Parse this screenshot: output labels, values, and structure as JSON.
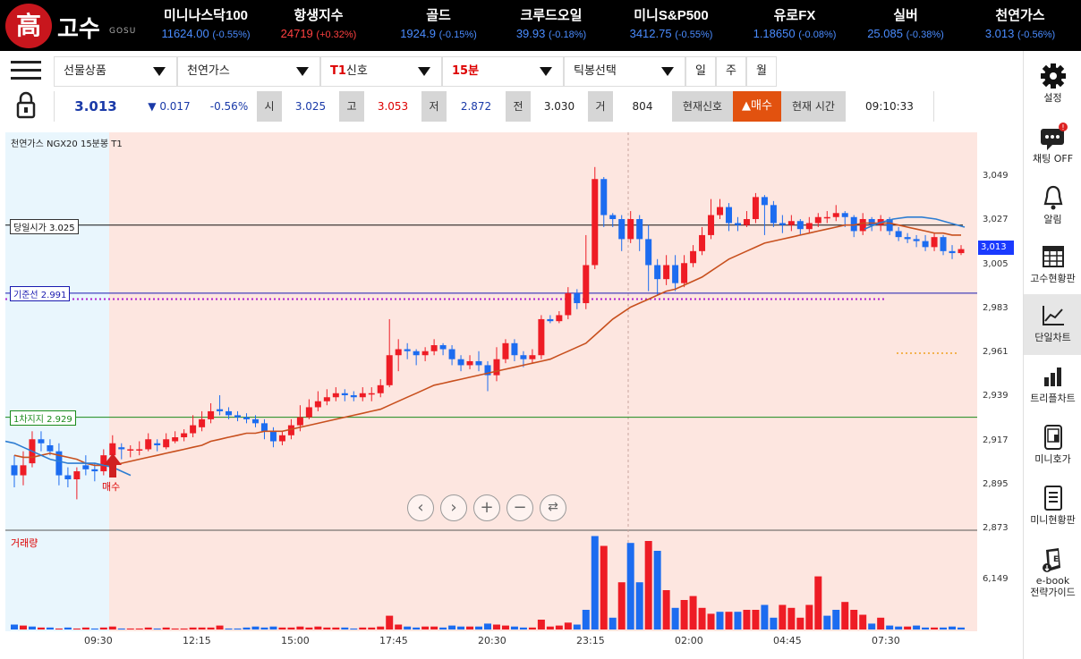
{
  "logo": {
    "hanja": "高",
    "name": "고수",
    "sub": "GOSU"
  },
  "tickers": [
    {
      "name": "미니나스닥100",
      "value": "11624.00",
      "change": "(-0.55%)",
      "dir": "down"
    },
    {
      "name": "항생지수",
      "value": "24719",
      "change": "(+0.32%)",
      "dir": "up"
    },
    {
      "name": "골드",
      "value": "1924.9",
      "change": "(-0.15%)",
      "dir": "down"
    },
    {
      "name": "크루드오일",
      "value": "39.93",
      "change": "(-0.18%)",
      "dir": "down"
    },
    {
      "name": "미니S&P500",
      "value": "3412.75",
      "change": "(-0.55%)",
      "dir": "down"
    },
    {
      "name": "유로FX",
      "value": "1.18650",
      "change": "(-0.08%)",
      "dir": "down"
    },
    {
      "name": "실버",
      "value": "25.085",
      "change": "(-0.38%)",
      "dir": "down"
    },
    {
      "name": "천연가스",
      "value": "3.013",
      "change": "(-0.56%)",
      "dir": "down"
    }
  ],
  "selectors": {
    "product": "선물상품",
    "item": "천연가스",
    "signal_prefix": "T1",
    "signal": "신호",
    "interval": "15분",
    "tick": "틱봉선택",
    "day": "일",
    "week": "주",
    "month": "월"
  },
  "quote": {
    "price": "3.013",
    "change": "▼ 0.017",
    "pct": "-0.56%",
    "open_label": "시",
    "open": "3.025",
    "high_label": "고",
    "high": "3.053",
    "low_label": "저",
    "low": "2.872",
    "prev_label": "전",
    "prev": "3.030",
    "vol_label": "거",
    "vol": "804",
    "signal_label": "현재신호",
    "signal_value": "▲매수",
    "time_label": "현재 시간",
    "time": "09:10:33"
  },
  "sidebar": [
    {
      "label": "설정",
      "icon": "gear-icon"
    },
    {
      "label": "채팅 OFF",
      "icon": "chat-icon"
    },
    {
      "label": "알림",
      "icon": "bell-icon"
    },
    {
      "label": "고수현황판",
      "icon": "calendar-grid-icon"
    },
    {
      "label": "단일차트",
      "icon": "line-chart-icon"
    },
    {
      "label": "트리플차트",
      "icon": "bar-chart-icon"
    },
    {
      "label": "미니호가",
      "icon": "phone-book-icon"
    },
    {
      "label": "미니현황판",
      "icon": "list-board-icon"
    },
    {
      "label": "e-book\n전략가이드",
      "icon": "ebook-icon"
    }
  ],
  "chart": {
    "title": "천연가스  NGX20  15분봉  T1",
    "open_line": "당일시가 3.025",
    "base_line": "기준선 2.991",
    "support_line": "1차지지 2.929",
    "buy_label": "매수",
    "volume_label": "거래량",
    "current_price_tag": "3,013",
    "y_ticks": [
      "3,049",
      "3,027",
      "3,005",
      "2,983",
      "2,961",
      "2,939",
      "2,917",
      "2,895",
      "2,873"
    ],
    "vol_tick": "6,149",
    "x_ticks": [
      "09:30",
      "12:15",
      "15:00",
      "17:45",
      "20:30",
      "23:15",
      "02:00",
      "04:45",
      "07:30"
    ]
  },
  "chart_data": {
    "type": "candlestick",
    "y_range": [
      2.873,
      3.06
    ],
    "colors": {
      "up": "#ee1c25",
      "down": "#1c6cf0",
      "ma": "#c8501e",
      "ma2": "#2d7dd2"
    },
    "candles": [
      [
        2.905,
        2.9,
        2.91,
        2.894
      ],
      [
        2.9,
        2.905,
        2.912,
        2.895
      ],
      [
        2.906,
        2.918,
        2.922,
        2.904
      ],
      [
        2.918,
        2.916,
        2.922,
        2.912
      ],
      [
        2.915,
        2.912,
        2.918,
        2.91
      ],
      [
        2.912,
        2.9,
        2.916,
        2.895
      ],
      [
        2.9,
        2.898,
        2.904,
        2.894
      ],
      [
        2.898,
        2.902,
        2.904,
        2.888
      ],
      [
        2.905,
        2.903,
        2.91,
        2.9
      ],
      [
        2.903,
        2.902,
        2.906,
        2.897
      ],
      [
        2.902,
        2.91,
        2.913,
        2.9
      ],
      [
        2.91,
        2.916,
        2.92,
        2.908
      ],
      [
        2.914,
        2.913,
        2.916,
        2.908
      ],
      [
        2.913,
        2.913,
        2.915,
        2.909
      ],
      [
        2.913,
        2.913,
        2.917,
        2.91
      ],
      [
        2.913,
        2.918,
        2.921,
        2.912
      ],
      [
        2.916,
        2.915,
        2.918,
        2.912
      ],
      [
        2.914,
        2.918,
        2.921,
        2.913
      ],
      [
        2.917,
        2.919,
        2.922,
        2.916
      ],
      [
        2.919,
        2.921,
        2.923,
        2.917
      ],
      [
        2.921,
        2.925,
        2.93,
        2.919
      ],
      [
        2.924,
        2.928,
        2.932,
        2.922
      ],
      [
        2.928,
        2.932,
        2.936,
        2.926
      ],
      [
        2.933,
        2.932,
        2.94,
        2.93
      ],
      [
        2.932,
        2.93,
        2.934,
        2.928
      ],
      [
        2.93,
        2.929,
        2.932,
        2.927
      ],
      [
        2.929,
        2.928,
        2.931,
        2.926
      ],
      [
        2.928,
        2.926,
        2.93,
        2.924
      ],
      [
        2.926,
        2.922,
        2.928,
        2.918
      ],
      [
        2.922,
        2.917,
        2.924,
        2.914
      ],
      [
        2.917,
        2.92,
        2.922,
        2.915
      ],
      [
        2.92,
        2.925,
        2.928,
        2.918
      ],
      [
        2.925,
        2.929,
        2.935,
        2.922
      ],
      [
        2.929,
        2.934,
        2.938,
        2.928
      ],
      [
        2.934,
        2.937,
        2.942,
        2.932
      ],
      [
        2.937,
        2.939,
        2.943,
        2.935
      ],
      [
        2.939,
        2.941,
        2.944,
        2.937
      ],
      [
        2.941,
        2.94,
        2.943,
        2.937
      ],
      [
        2.94,
        2.939,
        2.942,
        2.937
      ],
      [
        2.939,
        2.941,
        2.944,
        2.937
      ],
      [
        2.941,
        2.941,
        2.944,
        2.937
      ],
      [
        2.941,
        2.945,
        2.948,
        2.939
      ],
      [
        2.945,
        2.96,
        2.978,
        2.944
      ],
      [
        2.96,
        2.963,
        2.968,
        2.952
      ],
      [
        2.963,
        2.962,
        2.966,
        2.958
      ],
      [
        2.962,
        2.96,
        2.963,
        2.955
      ],
      [
        2.96,
        2.962,
        2.964,
        2.957
      ],
      [
        2.962,
        2.965,
        2.968,
        2.96
      ],
      [
        2.965,
        2.963,
        2.966,
        2.96
      ],
      [
        2.963,
        2.958,
        2.965,
        2.955
      ],
      [
        2.958,
        2.955,
        2.96,
        2.952
      ],
      [
        2.955,
        2.957,
        2.96,
        2.953
      ],
      [
        2.957,
        2.955,
        2.962,
        2.952
      ],
      [
        2.955,
        2.95,
        2.957,
        2.942
      ],
      [
        2.95,
        2.958,
        2.964,
        2.947
      ],
      [
        2.958,
        2.966,
        2.968,
        2.956
      ],
      [
        2.966,
        2.96,
        2.968,
        2.957
      ],
      [
        2.96,
        2.958,
        2.962,
        2.954
      ],
      [
        2.958,
        2.96,
        2.963,
        2.956
      ],
      [
        2.96,
        2.978,
        2.98,
        2.958
      ],
      [
        2.978,
        2.977,
        2.98,
        2.976
      ],
      [
        2.977,
        2.98,
        2.982,
        2.976
      ],
      [
        2.98,
        2.991,
        2.994,
        2.978
      ],
      [
        2.991,
        2.986,
        2.993,
        2.983
      ],
      [
        2.986,
        3.005,
        3.02,
        2.983
      ],
      [
        3.005,
        3.048,
        3.054,
        3.003
      ],
      [
        3.048,
        3.03,
        3.049,
        3.024
      ],
      [
        3.03,
        3.028,
        3.031,
        3.024
      ],
      [
        3.028,
        3.018,
        3.03,
        3.012
      ],
      [
        3.018,
        3.028,
        3.032,
        3.016
      ],
      [
        3.028,
        3.018,
        3.03,
        3.012
      ],
      [
        3.018,
        3.005,
        3.025,
        2.992
      ],
      [
        3.005,
        2.998,
        3.008,
        2.99
      ],
      [
        2.998,
        3.005,
        3.01,
        2.995
      ],
      [
        3.005,
        2.996,
        3.01,
        2.992
      ],
      [
        2.996,
        3.006,
        3.01,
        2.994
      ],
      [
        3.006,
        3.012,
        3.015,
        3.004
      ],
      [
        3.012,
        3.02,
        3.024,
        3.01
      ],
      [
        3.02,
        3.03,
        3.038,
        3.018
      ],
      [
        3.03,
        3.034,
        3.038,
        3.028
      ],
      [
        3.034,
        3.026,
        3.036,
        3.022
      ],
      [
        3.026,
        3.025,
        3.029,
        3.022
      ],
      [
        3.025,
        3.028,
        3.032,
        3.024
      ],
      [
        3.028,
        3.039,
        3.041,
        3.026
      ],
      [
        3.039,
        3.035,
        3.04,
        3.02
      ],
      [
        3.035,
        3.026,
        3.037,
        3.024
      ],
      [
        3.026,
        3.025,
        3.03,
        3.021
      ],
      [
        3.025,
        3.027,
        3.03,
        3.022
      ],
      [
        3.027,
        3.023,
        3.028,
        3.02
      ],
      [
        3.023,
        3.026,
        3.029,
        3.021
      ],
      [
        3.026,
        3.029,
        3.031,
        3.024
      ],
      [
        3.029,
        3.029,
        3.032,
        3.026
      ],
      [
        3.029,
        3.031,
        3.035,
        3.027
      ],
      [
        3.031,
        3.029,
        3.032,
        3.024
      ],
      [
        3.029,
        3.022,
        3.03,
        3.019
      ],
      [
        3.022,
        3.028,
        3.031,
        3.02
      ],
      [
        3.028,
        3.025,
        3.029,
        3.022
      ],
      [
        3.025,
        3.028,
        3.03,
        3.022
      ],
      [
        3.028,
        3.022,
        3.029,
        3.02
      ],
      [
        3.022,
        3.019,
        3.024,
        3.017
      ],
      [
        3.019,
        3.018,
        3.021,
        3.016
      ],
      [
        3.018,
        3.017,
        3.02,
        3.014
      ],
      [
        3.017,
        3.014,
        3.02,
        3.012
      ],
      [
        3.014,
        3.019,
        3.021,
        3.012
      ],
      [
        3.019,
        3.012,
        3.02,
        3.01
      ],
      [
        3.012,
        3.011,
        3.015,
        3.008
      ],
      [
        3.011,
        3.013,
        3.015,
        3.01
      ]
    ],
    "ma": [
      2.91,
      2.909,
      2.909,
      2.91,
      2.911,
      2.91,
      2.909,
      2.908,
      2.906,
      2.905,
      2.905,
      2.905,
      2.906,
      2.907,
      2.908,
      2.909,
      2.91,
      2.911,
      2.912,
      2.913,
      2.914,
      2.915,
      2.917,
      2.918,
      2.919,
      2.92,
      2.921,
      2.921,
      2.922,
      2.922,
      2.922,
      2.923,
      2.924,
      2.925,
      2.926,
      2.927,
      2.928,
      2.929,
      2.93,
      2.931,
      2.932,
      2.933,
      2.935,
      2.937,
      2.939,
      2.941,
      2.943,
      2.945,
      2.946,
      2.947,
      2.948,
      2.949,
      2.95,
      2.951,
      2.952,
      2.953,
      2.954,
      2.955,
      2.956,
      2.957,
      2.958,
      2.96,
      2.962,
      2.964,
      2.966,
      2.97,
      2.974,
      2.978,
      2.981,
      2.984,
      2.986,
      2.988,
      2.99,
      2.992,
      2.993,
      2.995,
      2.997,
      2.999,
      3.002,
      3.005,
      3.008,
      3.01,
      3.012,
      3.014,
      3.016,
      3.017,
      3.018,
      3.019,
      3.02,
      3.021,
      3.022,
      3.023,
      3.024,
      3.025,
      3.025,
      3.026,
      3.026,
      3.026,
      3.026,
      3.025,
      3.024,
      3.023,
      3.022,
      3.021,
      3.021,
      3.02,
      3.02
    ],
    "volumes": [
      [
        0.05,
        "down"
      ],
      [
        0.04,
        "up"
      ],
      [
        0.03,
        "down"
      ],
      [
        0.02,
        "up"
      ],
      [
        0.02,
        "down"
      ],
      [
        0.01,
        "up"
      ],
      [
        0.02,
        "down"
      ],
      [
        0.01,
        "up"
      ],
      [
        0.02,
        "up"
      ],
      [
        0.01,
        "down"
      ],
      [
        0.02,
        "up"
      ],
      [
        0.03,
        "up"
      ],
      [
        0.01,
        "down"
      ],
      [
        0.01,
        "up"
      ],
      [
        0.01,
        "up"
      ],
      [
        0.02,
        "up"
      ],
      [
        0.01,
        "down"
      ],
      [
        0.02,
        "up"
      ],
      [
        0.01,
        "up"
      ],
      [
        0.01,
        "up"
      ],
      [
        0.02,
        "up"
      ],
      [
        0.02,
        "up"
      ],
      [
        0.02,
        "up"
      ],
      [
        0.04,
        "up"
      ],
      [
        0.01,
        "down"
      ],
      [
        0.01,
        "down"
      ],
      [
        0.02,
        "down"
      ],
      [
        0.03,
        "down"
      ],
      [
        0.02,
        "down"
      ],
      [
        0.03,
        "down"
      ],
      [
        0.02,
        "up"
      ],
      [
        0.02,
        "up"
      ],
      [
        0.03,
        "up"
      ],
      [
        0.02,
        "up"
      ],
      [
        0.03,
        "up"
      ],
      [
        0.02,
        "up"
      ],
      [
        0.02,
        "up"
      ],
      [
        0.02,
        "down"
      ],
      [
        0.01,
        "down"
      ],
      [
        0.02,
        "up"
      ],
      [
        0.02,
        "up"
      ],
      [
        0.03,
        "up"
      ],
      [
        0.14,
        "up"
      ],
      [
        0.05,
        "up"
      ],
      [
        0.03,
        "down"
      ],
      [
        0.02,
        "down"
      ],
      [
        0.03,
        "up"
      ],
      [
        0.03,
        "up"
      ],
      [
        0.02,
        "down"
      ],
      [
        0.04,
        "down"
      ],
      [
        0.03,
        "down"
      ],
      [
        0.03,
        "up"
      ],
      [
        0.03,
        "down"
      ],
      [
        0.06,
        "down"
      ],
      [
        0.05,
        "up"
      ],
      [
        0.04,
        "up"
      ],
      [
        0.03,
        "down"
      ],
      [
        0.02,
        "down"
      ],
      [
        0.02,
        "up"
      ],
      [
        0.1,
        "up"
      ],
      [
        0.03,
        "up"
      ],
      [
        0.04,
        "up"
      ],
      [
        0.07,
        "up"
      ],
      [
        0.05,
        "down"
      ],
      [
        0.2,
        "down"
      ],
      [
        0.95,
        "down"
      ],
      [
        0.85,
        "red"
      ],
      [
        0.12,
        "down"
      ],
      [
        0.48,
        "up"
      ],
      [
        0.88,
        "down"
      ],
      [
        0.48,
        "down"
      ],
      [
        0.9,
        "up"
      ],
      [
        0.8,
        "down"
      ],
      [
        0.4,
        "up"
      ],
      [
        0.22,
        "down"
      ],
      [
        0.3,
        "up"
      ],
      [
        0.34,
        "up"
      ],
      [
        0.22,
        "up"
      ],
      [
        0.16,
        "up"
      ],
      [
        0.18,
        "down"
      ],
      [
        0.18,
        "up"
      ],
      [
        0.18,
        "down"
      ],
      [
        0.2,
        "up"
      ],
      [
        0.2,
        "up"
      ],
      [
        0.25,
        "down"
      ],
      [
        0.12,
        "down"
      ],
      [
        0.25,
        "up"
      ],
      [
        0.22,
        "up"
      ],
      [
        0.12,
        "up"
      ],
      [
        0.25,
        "up"
      ],
      [
        0.54,
        "up"
      ],
      [
        0.14,
        "down"
      ],
      [
        0.2,
        "down"
      ],
      [
        0.28,
        "up"
      ],
      [
        0.2,
        "up"
      ],
      [
        0.15,
        "up"
      ],
      [
        0.06,
        "down"
      ],
      [
        0.12,
        "up"
      ],
      [
        0.04,
        "down"
      ],
      [
        0.03,
        "down"
      ],
      [
        0.03,
        "up"
      ],
      [
        0.04,
        "down"
      ],
      [
        0.02,
        "down"
      ],
      [
        0.02,
        "up"
      ],
      [
        0.02,
        "down"
      ],
      [
        0.03,
        "down"
      ],
      [
        0.02,
        "down"
      ]
    ]
  }
}
